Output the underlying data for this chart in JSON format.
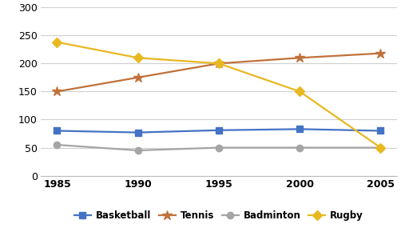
{
  "years": [
    1985,
    1990,
    1995,
    2000,
    2005
  ],
  "series": {
    "Basketball": {
      "values": [
        80,
        77,
        81,
        83,
        80
      ],
      "color": "#4472C4",
      "marker": "s",
      "markersize": 6
    },
    "Tennis": {
      "values": [
        150,
        175,
        200,
        210,
        218
      ],
      "color": "#C0713A",
      "marker": "*",
      "markersize": 9
    },
    "Badminton": {
      "values": [
        55,
        45,
        50,
        50,
        50
      ],
      "color": "#A5A5A5",
      "marker": "o",
      "markersize": 6
    },
    "Rugby": {
      "values": [
        238,
        210,
        200,
        150,
        50
      ],
      "color": "#E8B820",
      "marker": "D",
      "markersize": 6
    }
  },
  "ylim": [
    0,
    300
  ],
  "yticks": [
    0,
    50,
    100,
    150,
    200,
    250,
    300
  ],
  "xticks": [
    1985,
    1990,
    1995,
    2000,
    2005
  ],
  "legend_labels": [
    "Basketball",
    "Tennis",
    "Badminton",
    "Rugby"
  ],
  "background_color": "#FFFFFF",
  "grid_color": "#D0D0D0",
  "linewidth": 1.6,
  "tick_fontsize": 9,
  "legend_fontsize": 8.5
}
